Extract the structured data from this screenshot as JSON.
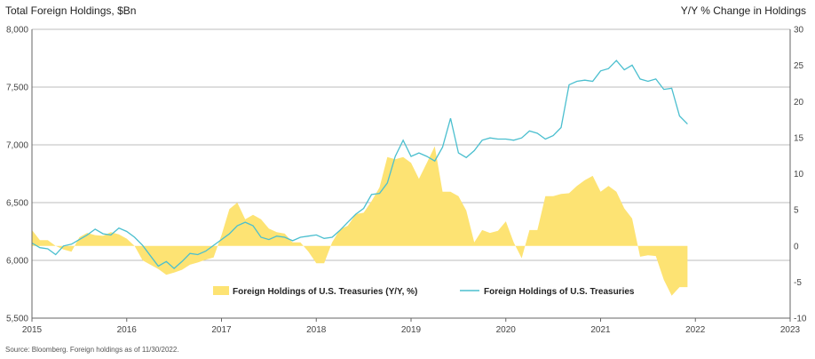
{
  "header": {
    "left_title": "Total Foreign Holdings, $Bn",
    "right_title": "Y/Y % Change in Holdings"
  },
  "source": "Source: Bloomberg. Foreign holdings as of 11/30/2022.",
  "colors": {
    "area": "#fde373",
    "line": "#4bbfcf",
    "grid": "#bdbdbd",
    "axis": "#666666"
  },
  "chart_data": {
    "type": "line",
    "title": "",
    "x_tick_labels": [
      "2015",
      "2016",
      "2017",
      "2018",
      "2019",
      "2020",
      "2021",
      "2022",
      "2023"
    ],
    "xlim": [
      2015.0,
      2023.0
    ],
    "y_left": {
      "label": "Total Foreign Holdings, $Bn",
      "ylim": [
        5500,
        8000
      ],
      "tick_labels": [
        "5,500",
        "6,000",
        "6,500",
        "7,000",
        "7,500",
        "8,000"
      ],
      "ticks": [
        5500,
        6000,
        6500,
        7000,
        7500,
        8000
      ]
    },
    "y_right": {
      "label": "Y/Y % Change in Holdings",
      "ylim": [
        -10,
        30
      ],
      "tick_labels": [
        "-10",
        "-5",
        "0",
        "5",
        "10",
        "15",
        "20",
        "25",
        "30"
      ],
      "ticks": [
        -10,
        -5,
        0,
        5,
        10,
        15,
        20,
        25,
        30
      ]
    },
    "grid": "horizontal",
    "legend": {
      "position": "bottom-center"
    },
    "series": [
      {
        "name": "Foreign Holdings of U.S. Treasuries (Y/Y, %)",
        "type": "area",
        "axis": "right",
        "color": "#fde373",
        "x": [
          2015.0,
          2015.083,
          2015.167,
          2015.25,
          2015.333,
          2015.417,
          2015.5,
          2015.583,
          2015.667,
          2015.75,
          2015.833,
          2015.917,
          2016.0,
          2016.083,
          2016.167,
          2016.25,
          2016.333,
          2016.417,
          2016.5,
          2016.583,
          2016.667,
          2016.75,
          2016.833,
          2016.917,
          2017.0,
          2017.083,
          2017.167,
          2017.25,
          2017.333,
          2017.417,
          2017.5,
          2017.583,
          2017.667,
          2017.75,
          2017.833,
          2017.917,
          2018.0,
          2018.083,
          2018.167,
          2018.25,
          2018.333,
          2018.417,
          2018.5,
          2018.583,
          2018.667,
          2018.75,
          2018.833,
          2018.917,
          2019.0,
          2019.083,
          2019.167,
          2019.25,
          2019.333,
          2019.417,
          2019.5,
          2019.583,
          2019.667,
          2019.75,
          2019.833,
          2019.917,
          2020.0,
          2020.083,
          2020.167,
          2020.25,
          2020.333,
          2020.417,
          2020.5,
          2020.583,
          2020.667,
          2020.75,
          2020.833,
          2020.917,
          2021.0,
          2021.083,
          2021.167,
          2021.25,
          2021.333,
          2021.417,
          2021.5,
          2021.583,
          2021.667,
          2021.75,
          2021.833,
          2021.917
        ],
        "values": [
          2.2,
          0.8,
          0.8,
          0.0,
          -0.5,
          -0.8,
          1.2,
          1.8,
          1.5,
          1.4,
          1.9,
          1.6,
          1.0,
          0.0,
          -2.0,
          -2.6,
          -3.2,
          -4.0,
          -3.7,
          -3.3,
          -2.6,
          -2.3,
          -1.9,
          -1.6,
          1.5,
          5.1,
          6.0,
          3.7,
          4.3,
          3.7,
          2.4,
          1.9,
          1.7,
          0.5,
          0.5,
          -0.8,
          -2.4,
          -2.4,
          0.5,
          2.3,
          2.8,
          4.4,
          4.6,
          6.2,
          8.1,
          12.3,
          12.0,
          12.3,
          11.5,
          9.3,
          11.5,
          13.8,
          7.5,
          7.5,
          6.9,
          4.9,
          0.5,
          2.2,
          1.8,
          2.1,
          3.4,
          0.5,
          -1.7,
          2.2,
          2.2,
          6.9,
          6.9,
          7.2,
          7.3,
          8.3,
          9.1,
          9.7,
          7.5,
          8.3,
          7.5,
          5.2,
          3.8,
          -1.5,
          -1.3,
          -1.4,
          -4.7,
          -6.9,
          -5.7,
          -5.7
        ]
      },
      {
        "name": "Foreign Holdings of U.S. Treasuries",
        "type": "line",
        "axis": "left",
        "color": "#4bbfcf",
        "x": [
          2015.0,
          2015.083,
          2015.167,
          2015.25,
          2015.333,
          2015.417,
          2015.5,
          2015.583,
          2015.667,
          2015.75,
          2015.833,
          2015.917,
          2016.0,
          2016.083,
          2016.167,
          2016.25,
          2016.333,
          2016.417,
          2016.5,
          2016.583,
          2016.667,
          2016.75,
          2016.833,
          2016.917,
          2017.0,
          2017.083,
          2017.167,
          2017.25,
          2017.333,
          2017.417,
          2017.5,
          2017.583,
          2017.667,
          2017.75,
          2017.833,
          2017.917,
          2018.0,
          2018.083,
          2018.167,
          2018.25,
          2018.333,
          2018.417,
          2018.5,
          2018.583,
          2018.667,
          2018.75,
          2018.833,
          2018.917,
          2019.0,
          2019.083,
          2019.167,
          2019.25,
          2019.333,
          2019.417,
          2019.5,
          2019.583,
          2019.667,
          2019.75,
          2019.833,
          2019.917,
          2020.0,
          2020.083,
          2020.167,
          2020.25,
          2020.333,
          2020.417,
          2020.5,
          2020.583,
          2020.667,
          2020.75,
          2020.833,
          2020.917,
          2021.0,
          2021.083,
          2021.167,
          2021.25,
          2021.333,
          2021.417,
          2021.5,
          2021.583,
          2021.667,
          2021.75,
          2021.833,
          2021.917
        ],
        "values": [
          6150,
          6110,
          6100,
          6050,
          6125,
          6140,
          6180,
          6220,
          6270,
          6230,
          6220,
          6280,
          6250,
          6200,
          6130,
          6040,
          5950,
          5990,
          5930,
          5990,
          6060,
          6050,
          6080,
          6130,
          6180,
          6230,
          6300,
          6330,
          6300,
          6200,
          6180,
          6210,
          6200,
          6170,
          6200,
          6210,
          6220,
          6190,
          6200,
          6260,
          6330,
          6400,
          6450,
          6570,
          6580,
          6670,
          6900,
          7040,
          6900,
          6930,
          6900,
          6860,
          6980,
          7230,
          6930,
          6890,
          6950,
          7040,
          7060,
          7050,
          7050,
          7040,
          7060,
          7120,
          7100,
          7050,
          7080,
          7150,
          7520,
          7550,
          7560,
          7550,
          7640,
          7660,
          7730,
          7650,
          7690,
          7570,
          7550,
          7570,
          7480,
          7490,
          7250,
          7180
        ]
      }
    ]
  },
  "legend": {
    "area_label": "Foreign Holdings of U.S. Treasuries (Y/Y, %)",
    "line_label": "Foreign Holdings of U.S. Treasuries"
  }
}
